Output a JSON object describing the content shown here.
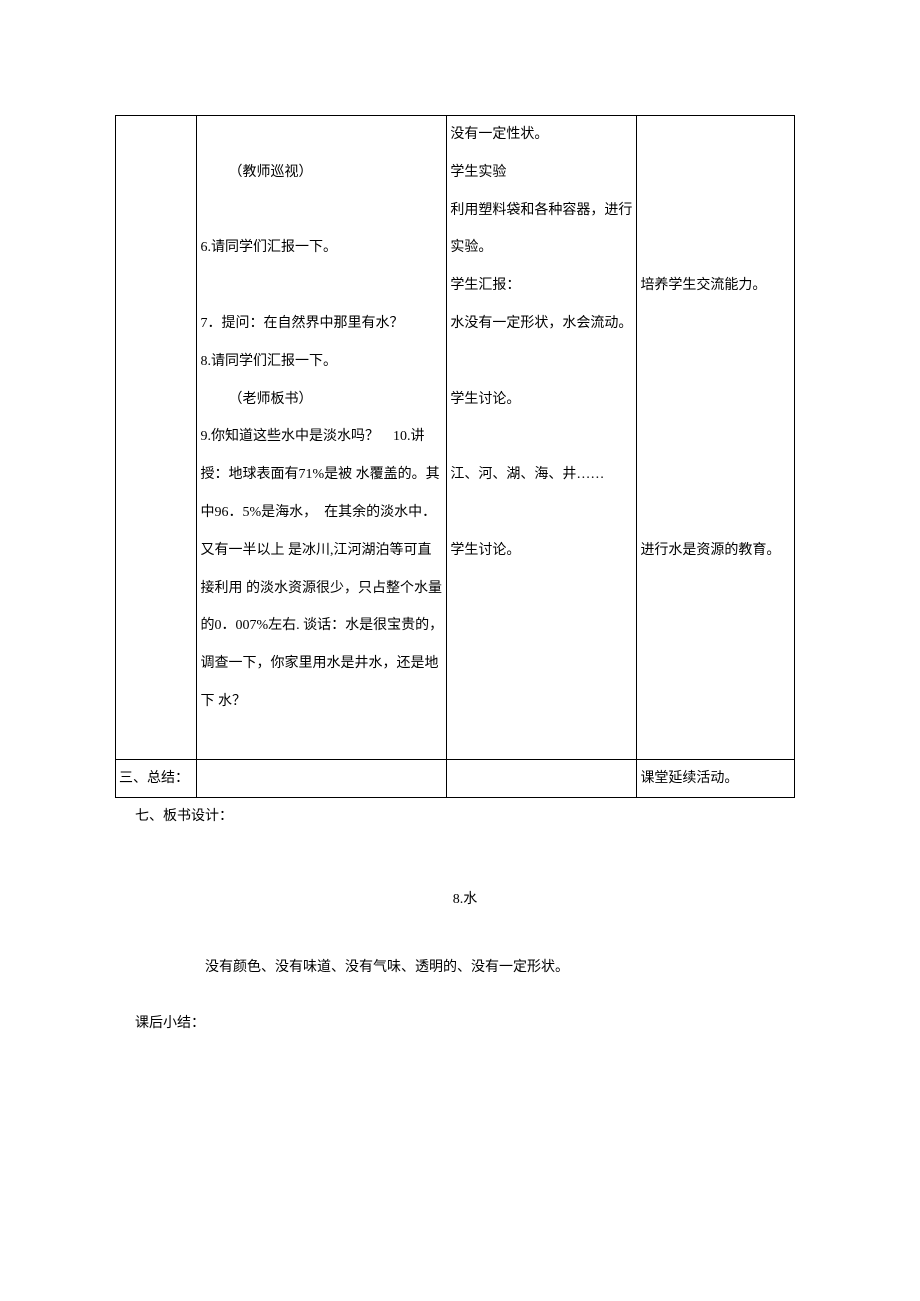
{
  "table": {
    "row1": {
      "col2": {
        "line1": "（教师巡视）",
        "line2": "6.请同学们汇报一下。",
        "line3": "7．提问：在自然界中那里有水？",
        "line4": "8.请同学们汇报一下。",
        "line5": "（老师板书）",
        "line6": "9.你知道这些水中是淡水吗？　10.讲授：地球表面有71%是被 水覆盖的。其中96．5%是海水，　在其余的淡水中．又有一半以上 是冰川,江河湖泊等可直接利用 的淡水资源很少，只占整个水量 的0．007%左右. 谈话：水是很宝贵的，调查一下，你家里用水是井水，还是地下 水？"
      },
      "col3": {
        "line1": "没有一定性状。",
        "line2": "学生实验",
        "line3": "利用塑料袋和各种容器，进行实验。",
        "line4": "学生汇报：",
        "line5": "水没有一定形状，水会流动。",
        "line6": "学生讨论。",
        "line7": "江、河、湖、海、井……",
        "line8": "学生讨论。"
      },
      "col4": {
        "line1": "培养学生交流能力。",
        "line2": "进行水是资源的教育。"
      }
    },
    "row2": {
      "col1": "三、总结：",
      "col4": "课堂延续活动。"
    }
  },
  "below": {
    "section": "七、板书设计：",
    "lesson_title": "8.水",
    "description": "没有颜色、没有味道、没有气味、透明的、没有一定形状。",
    "summary_label": "课后小结："
  }
}
